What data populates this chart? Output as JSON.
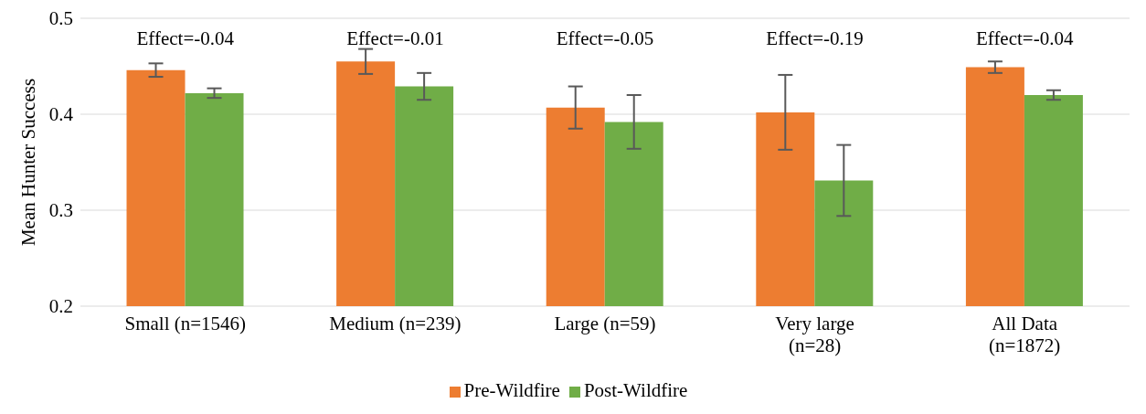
{
  "chart_data": {
    "type": "bar",
    "ylabel": "Mean Hunter Success",
    "categories": [
      "Small (n=1546)",
      "Medium (n=239)",
      "Large (n=59)",
      "Very large (n=28)",
      "All Data (n=1872)"
    ],
    "series": [
      {
        "name": "Pre-Wildfire",
        "color": "#ed7d31",
        "values": [
          0.446,
          0.455,
          0.407,
          0.402,
          0.449
        ],
        "errors": [
          0.007,
          0.013,
          0.022,
          0.039,
          0.006
        ]
      },
      {
        "name": "Post-Wildfire",
        "color": "#70ad47",
        "values": [
          0.422,
          0.429,
          0.392,
          0.331,
          0.42
        ],
        "errors": [
          0.005,
          0.014,
          0.028,
          0.037,
          0.005
        ]
      }
    ],
    "annotations": [
      "Effect=-0.04",
      "Effect=-0.01",
      "Effect=-0.05",
      "Effect=-0.19",
      "Effect=-0.04"
    ],
    "ylim": [
      0.2,
      0.5
    ],
    "yticks": [
      0.2,
      0.3,
      0.4,
      0.5
    ],
    "grid": "y",
    "legend": "bottom"
  }
}
